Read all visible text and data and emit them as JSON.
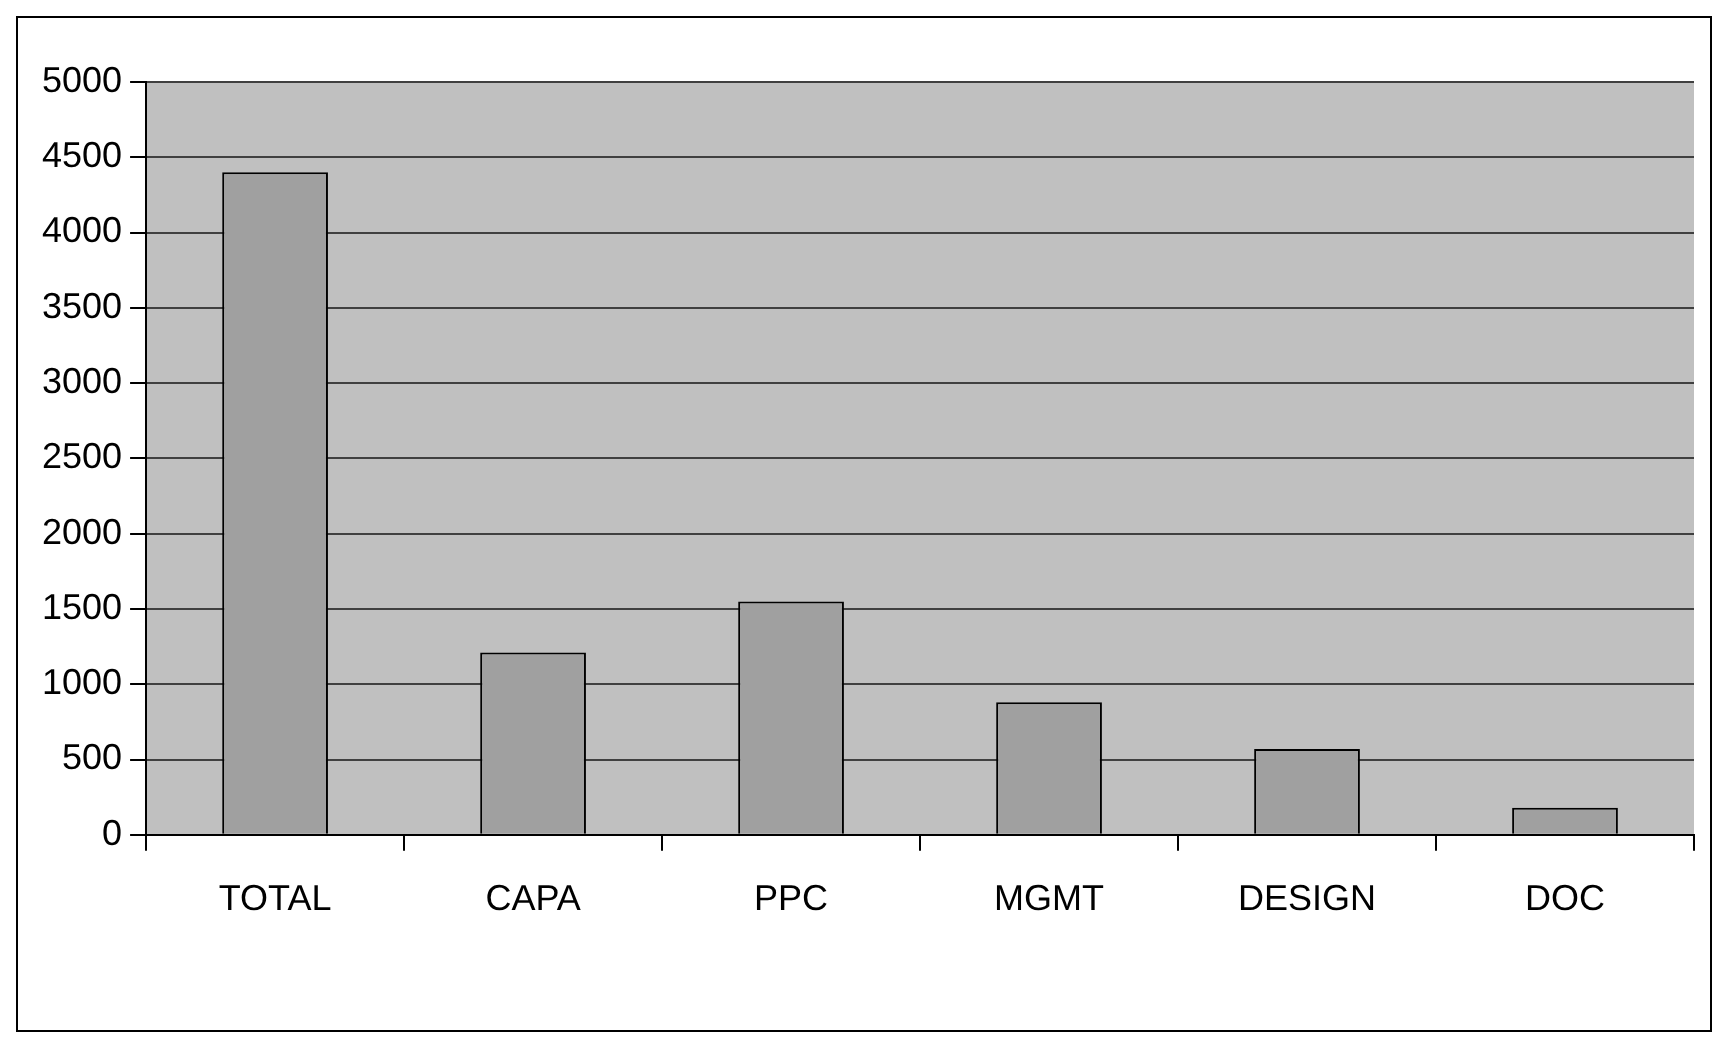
{
  "chart_data": {
    "type": "bar",
    "categories": [
      "TOTAL",
      "CAPA",
      "PPC",
      "MGMT",
      "DESIGN",
      "DOC"
    ],
    "values": [
      4400,
      1210,
      1550,
      880,
      570,
      180
    ],
    "color": "#a0a0a0",
    "ylim": [
      0,
      5000
    ],
    "yticks": [
      0,
      500,
      1000,
      1500,
      2000,
      2500,
      3000,
      3500,
      4000,
      4500,
      5000
    ],
    "grid": "y",
    "legend": false
  }
}
